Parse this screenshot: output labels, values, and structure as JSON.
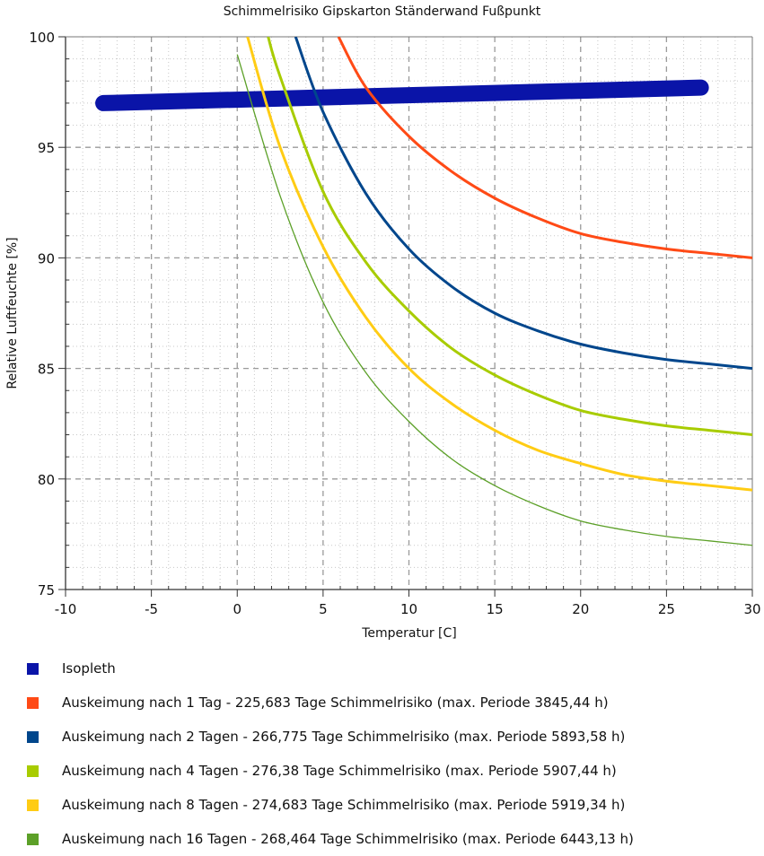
{
  "chart_data": {
    "type": "line",
    "title": "Schimmelrisiko Gipskarton Ständerwand Fußpunkt",
    "xlabel": "Temperatur [C]",
    "ylabel": "Relative Luftfeuchte [%]",
    "xlim": [
      -10,
      30
    ],
    "ylim": [
      75,
      100
    ],
    "xticks": [
      -10,
      -5,
      0,
      5,
      10,
      15,
      20,
      25,
      30
    ],
    "yticks": [
      75,
      80,
      85,
      90,
      95,
      100
    ],
    "grid": true,
    "legend_position": "bottom",
    "series": [
      {
        "name": "Isopleth",
        "color": "#0a14a8",
        "style": "thick-band",
        "x": [
          -7.8,
          27.0
        ],
        "y": [
          97.0,
          97.7
        ]
      },
      {
        "name": "Auskeimung nach 1 Tag - 225,683 Tage Schimmelrisiko (max. Periode 3845,44 h)",
        "color": "#ff4a16",
        "style": "line",
        "x": [
          5.9,
          7.5,
          10,
          12.5,
          15,
          17.5,
          20,
          22.5,
          25,
          27.5,
          30
        ],
        "y": [
          100,
          97.7,
          95.5,
          93.9,
          92.7,
          91.8,
          91.1,
          90.7,
          90.4,
          90.2,
          90.0
        ]
      },
      {
        "name": "Auskeimung nach 2 Tagen - 266,775 Tage Schimmelrisiko (max. Periode 5893,58 h)",
        "color": "#00468c",
        "style": "line",
        "x": [
          3.4,
          5,
          7.5,
          10,
          12.5,
          15,
          17.5,
          20,
          22.5,
          25,
          27.5,
          30
        ],
        "y": [
          100,
          96.6,
          92.9,
          90.4,
          88.7,
          87.5,
          86.7,
          86.1,
          85.7,
          85.4,
          85.2,
          85.0
        ]
      },
      {
        "name": "Auskeimung nach 4 Tagen - 276,38 Tage Schimmelrisiko (max. Periode 5907,44 h)",
        "color": "#a8cc00",
        "style": "line",
        "x": [
          1.8,
          2.5,
          5,
          7.5,
          10,
          12.5,
          15,
          17.5,
          20,
          22.5,
          25,
          27.5,
          30
        ],
        "y": [
          100,
          98.2,
          93.0,
          89.8,
          87.6,
          85.9,
          84.7,
          83.8,
          83.1,
          82.7,
          82.4,
          82.2,
          82.0
        ]
      },
      {
        "name": "Auskeimung nach 8 Tagen - 274,683 Tage Schimmelrisiko (max. Periode 5919,34 h)",
        "color": "#ffcc14",
        "style": "line",
        "x": [
          0.6,
          2.5,
          5,
          7.5,
          10,
          12.5,
          15,
          17.5,
          20,
          22.5,
          25,
          27.5,
          30
        ],
        "y": [
          100,
          95.0,
          90.5,
          87.3,
          85.0,
          83.4,
          82.2,
          81.3,
          80.7,
          80.2,
          79.9,
          79.7,
          79.5
        ]
      },
      {
        "name": "Auskeimung nach 16 Tagen - 268,464 Tage Schimmelrisiko (max. Periode 6443,13 h)",
        "color": "#5ca028",
        "style": "thin-line",
        "x": [
          0,
          2.5,
          5,
          7.5,
          10,
          12.5,
          15,
          17.5,
          20,
          22.5,
          25,
          27.5,
          30
        ],
        "y": [
          99.2,
          92.8,
          88.0,
          84.8,
          82.6,
          80.9,
          79.7,
          78.8,
          78.1,
          77.7,
          77.4,
          77.2,
          77.0
        ]
      }
    ]
  }
}
